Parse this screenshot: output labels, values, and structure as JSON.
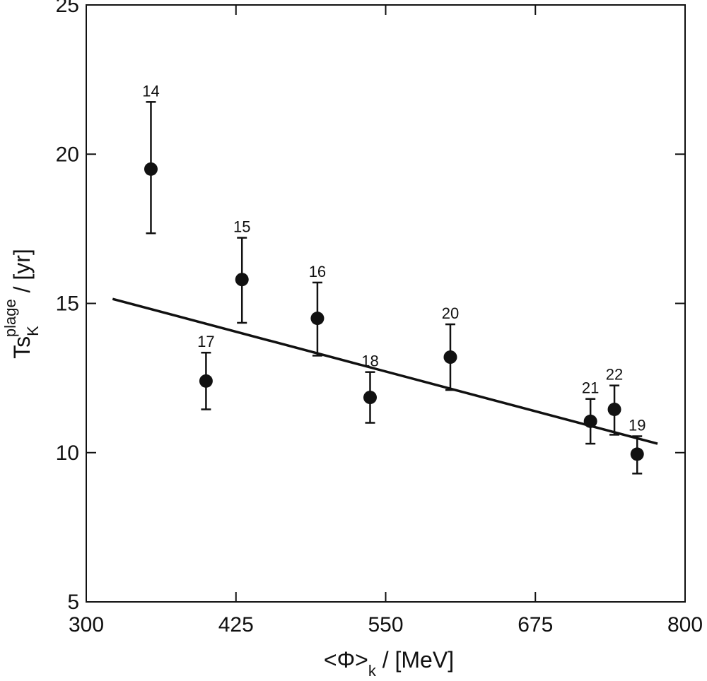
{
  "chart_data": {
    "type": "scatter",
    "title": "",
    "x_axis": {
      "label_main": "<Φ>",
      "label_sub": "k",
      "label_unit": " / [MeV]",
      "range": [
        300,
        800
      ],
      "ticks": [
        300,
        425,
        550,
        675,
        800
      ]
    },
    "y_axis": {
      "label_main": "Ts",
      "label_sub": "K",
      "label_sup": "plage",
      "label_unit": " / [yr]",
      "range": [
        5,
        25
      ],
      "ticks": [
        5,
        10,
        15,
        20,
        25
      ]
    },
    "points": [
      {
        "label": "14",
        "x": 354,
        "y": 19.5,
        "err_low": 17.35,
        "err_high": 21.75
      },
      {
        "label": "17",
        "x": 400,
        "y": 12.4,
        "err_low": 11.45,
        "err_high": 13.35
      },
      {
        "label": "15",
        "x": 430,
        "y": 15.8,
        "err_low": 14.35,
        "err_high": 17.2
      },
      {
        "label": "16",
        "x": 493,
        "y": 14.5,
        "err_low": 13.25,
        "err_high": 15.7
      },
      {
        "label": "18",
        "x": 537,
        "y": 11.85,
        "err_low": 11.0,
        "err_high": 12.7
      },
      {
        "label": "20",
        "x": 604,
        "y": 13.2,
        "err_low": 12.1,
        "err_high": 14.3
      },
      {
        "label": "21",
        "x": 721,
        "y": 11.05,
        "err_low": 10.3,
        "err_high": 11.8
      },
      {
        "label": "22",
        "x": 741,
        "y": 11.45,
        "err_low": 10.6,
        "err_high": 12.25
      },
      {
        "label": "19",
        "x": 760,
        "y": 9.95,
        "err_low": 9.3,
        "err_high": 10.55
      }
    ],
    "fit_line": {
      "x": [
        322,
        777
      ],
      "y": [
        15.15,
        10.3
      ]
    },
    "grid": false,
    "legend": "none"
  }
}
